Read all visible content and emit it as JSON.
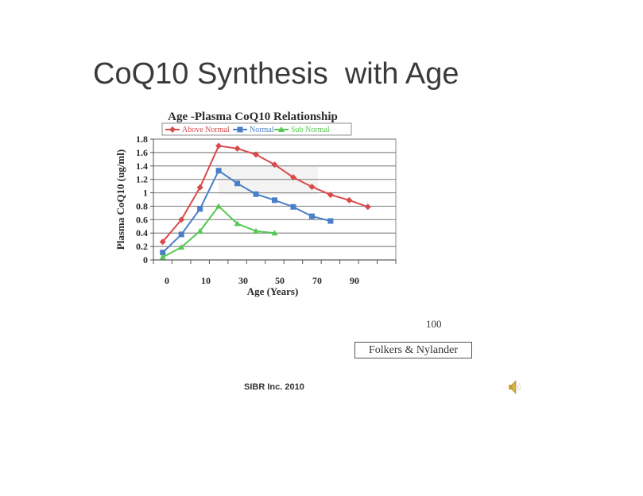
{
  "slide": {
    "title": "CoQ10 Synthesis  with Age",
    "page_number": "100",
    "citation": "Folkers & Nylander",
    "footer": "SIBR Inc. 2010",
    "speaker_icon": "speaker-icon"
  },
  "chart_data": {
    "type": "line",
    "title": "Age -Plasma CoQ10 Relationship",
    "xlabel": "Age (Years)",
    "ylabel": "Plasma CoQ10 (ug/ml)",
    "ylim": [
      0,
      1.8
    ],
    "yticks": [
      "0",
      "0.2",
      "0.4",
      "0.6",
      "0.8",
      "1",
      "1.2",
      "1.4",
      "1.6",
      "1.8"
    ],
    "xtick_labels": [
      "0",
      "10",
      "30",
      "50",
      "70",
      "90"
    ],
    "grid": true,
    "legend_position": "top",
    "x": [
      0,
      5,
      10,
      20,
      25,
      30,
      40,
      50,
      60,
      70,
      80,
      90
    ],
    "series": [
      {
        "name": "Above Normal",
        "color": "#d9494a",
        "marker": "diamond",
        "values": [
          0.27,
          0.6,
          1.08,
          1.7,
          1.66,
          1.57,
          1.42,
          1.23,
          1.09,
          0.97,
          0.89,
          0.79
        ]
      },
      {
        "name": "Normal",
        "color": "#4a7fc7",
        "marker": "square",
        "values": [
          0.11,
          0.38,
          0.76,
          1.33,
          1.14,
          0.98,
          0.89,
          0.79,
          0.65,
          0.58
        ]
      },
      {
        "name": "Sub Normal",
        "color": "#55c850",
        "marker": "triangle",
        "values": [
          0.04,
          0.19,
          0.43,
          0.8,
          0.54,
          0.43,
          0.4
        ]
      }
    ]
  }
}
